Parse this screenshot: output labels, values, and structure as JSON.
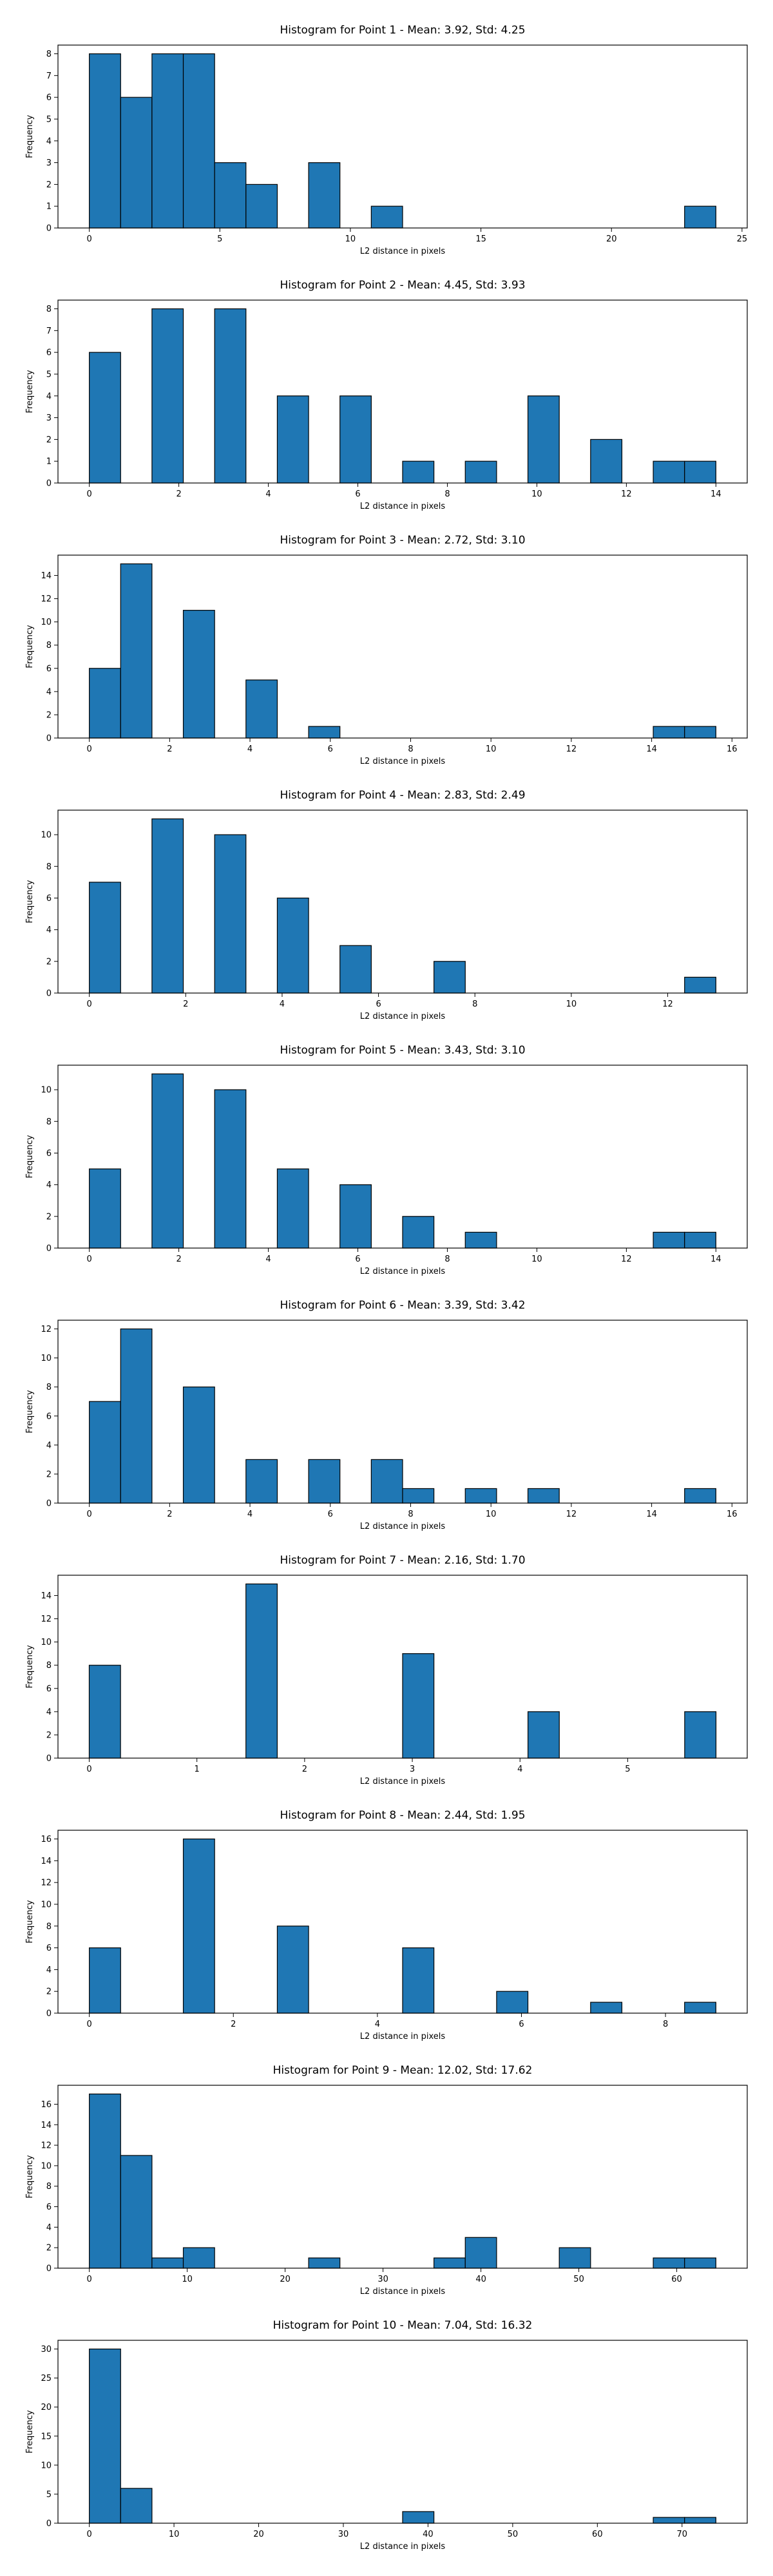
{
  "colors": {
    "bar": "#1f77b4",
    "edge": "#000000",
    "axis": "#000000",
    "background": "#ffffff"
  },
  "chart_data": [
    {
      "type": "bar",
      "title": "Histogram for Point 1 - Mean: 3.92, Std: 4.25",
      "xlabel": "L2 distance in pixels",
      "ylabel": "Frequency",
      "xlim": [
        -1.2,
        25.2
      ],
      "ylim": [
        0,
        8.4
      ],
      "xticks": [
        0,
        5,
        10,
        15,
        20,
        25
      ],
      "yticks": [
        0,
        1,
        2,
        3,
        4,
        5,
        6,
        7,
        8
      ],
      "bin_edges": [
        0.0,
        1.2,
        2.4,
        3.6,
        4.8,
        6.0,
        7.2,
        8.4,
        9.6,
        10.8,
        12.0,
        13.2,
        14.4,
        15.6,
        16.8,
        18.0,
        19.2,
        20.4,
        21.6,
        22.8,
        24.0
      ],
      "counts": [
        8,
        6,
        8,
        8,
        3,
        2,
        0,
        3,
        0,
        1,
        0,
        0,
        0,
        0,
        0,
        0,
        0,
        0,
        0,
        1
      ],
      "grid": false
    },
    {
      "type": "bar",
      "title": "Histogram for Point 2 - Mean: 4.45, Std: 3.93",
      "xlabel": "L2 distance in pixels",
      "ylabel": "Frequency",
      "xlim": [
        -0.7,
        14.7
      ],
      "ylim": [
        0,
        8.4
      ],
      "xticks": [
        0,
        2,
        4,
        6,
        8,
        10,
        12,
        14
      ],
      "yticks": [
        0,
        1,
        2,
        3,
        4,
        5,
        6,
        7,
        8
      ],
      "bin_edges": [
        0.0,
        0.7,
        1.4,
        2.1,
        2.8,
        3.5,
        4.2,
        4.9,
        5.6,
        6.3,
        7.0,
        7.7,
        8.4,
        9.1,
        9.8,
        10.5,
        11.2,
        11.9,
        12.6,
        13.3,
        14.0
      ],
      "counts": [
        6,
        0,
        8,
        0,
        8,
        0,
        4,
        0,
        4,
        0,
        1,
        0,
        1,
        0,
        4,
        0,
        2,
        0,
        1,
        1
      ],
      "grid": false
    },
    {
      "type": "bar",
      "title": "Histogram for Point 3 - Mean: 2.72, Std: 3.10",
      "xlabel": "L2 distance in pixels",
      "ylabel": "Frequency",
      "xlim": [
        -0.78,
        16.38
      ],
      "ylim": [
        0,
        15.75
      ],
      "xticks": [
        0,
        2,
        4,
        6,
        8,
        10,
        12,
        14,
        16
      ],
      "yticks": [
        0,
        2,
        4,
        6,
        8,
        10,
        12,
        14
      ],
      "bin_edges": [
        0.0,
        0.78,
        1.56,
        2.34,
        3.12,
        3.9,
        4.68,
        5.46,
        6.24,
        7.02,
        7.8,
        8.58,
        9.36,
        10.14,
        10.92,
        11.7,
        12.48,
        13.26,
        14.04,
        14.82,
        15.6
      ],
      "counts": [
        6,
        15,
        0,
        11,
        0,
        5,
        0,
        1,
        0,
        0,
        0,
        0,
        0,
        0,
        0,
        0,
        0,
        0,
        1,
        1
      ],
      "grid": false
    },
    {
      "type": "bar",
      "title": "Histogram for Point 4 - Mean: 2.83, Std: 2.49",
      "xlabel": "L2 distance in pixels",
      "ylabel": "Frequency",
      "xlim": [
        -0.65,
        13.65
      ],
      "ylim": [
        0,
        11.55
      ],
      "xticks": [
        0,
        2,
        4,
        6,
        8,
        10,
        12
      ],
      "yticks": [
        0,
        2,
        4,
        6,
        8,
        10
      ],
      "bin_edges": [
        0.0,
        0.65,
        1.3,
        1.95,
        2.6,
        3.25,
        3.9,
        4.55,
        5.2,
        5.85,
        6.5,
        7.15,
        7.8,
        8.45,
        9.1,
        9.75,
        10.4,
        11.05,
        11.7,
        12.35,
        13.0
      ],
      "counts": [
        7,
        0,
        11,
        0,
        10,
        0,
        6,
        0,
        3,
        0,
        0,
        2,
        0,
        0,
        0,
        0,
        0,
        0,
        0,
        1
      ],
      "grid": false
    },
    {
      "type": "bar",
      "title": "Histogram for Point 5 - Mean: 3.43, Std: 3.10",
      "xlabel": "L2 distance in pixels",
      "ylabel": "Frequency",
      "xlim": [
        -0.7,
        14.7
      ],
      "ylim": [
        0,
        11.55
      ],
      "xticks": [
        0,
        2,
        4,
        6,
        8,
        10,
        12,
        14
      ],
      "yticks": [
        0,
        2,
        4,
        6,
        8,
        10
      ],
      "bin_edges": [
        0.0,
        0.7,
        1.4,
        2.1,
        2.8,
        3.5,
        4.2,
        4.9,
        5.6,
        6.3,
        7.0,
        7.7,
        8.4,
        9.1,
        9.8,
        10.5,
        11.2,
        11.9,
        12.6,
        13.3,
        14.0
      ],
      "counts": [
        5,
        0,
        11,
        0,
        10,
        0,
        5,
        0,
        4,
        0,
        2,
        0,
        1,
        0,
        0,
        0,
        0,
        0,
        1,
        1
      ],
      "grid": false
    },
    {
      "type": "bar",
      "title": "Histogram for Point 6 - Mean: 3.39, Std: 3.42",
      "xlabel": "L2 distance in pixels",
      "ylabel": "Frequency",
      "xlim": [
        -0.78,
        16.38
      ],
      "ylim": [
        0,
        12.6
      ],
      "xticks": [
        0,
        2,
        4,
        6,
        8,
        10,
        12,
        14,
        16
      ],
      "yticks": [
        0,
        2,
        4,
        6,
        8,
        10,
        12
      ],
      "bin_edges": [
        0.0,
        0.78,
        1.56,
        2.34,
        3.12,
        3.9,
        4.68,
        5.46,
        6.24,
        7.02,
        7.8,
        8.58,
        9.36,
        10.14,
        10.92,
        11.7,
        12.48,
        13.26,
        14.04,
        14.82,
        15.6
      ],
      "counts": [
        7,
        12,
        0,
        8,
        0,
        3,
        0,
        3,
        0,
        3,
        1,
        0,
        1,
        0,
        1,
        0,
        0,
        0,
        0,
        1
      ],
      "grid": false
    },
    {
      "type": "bar",
      "title": "Histogram for Point 7 - Mean: 2.16, Std: 1.70",
      "xlabel": "L2 distance in pixels",
      "ylabel": "Frequency",
      "xlim": [
        -0.29,
        6.11
      ],
      "ylim": [
        0,
        15.75
      ],
      "xticks": [
        0,
        1,
        2,
        3,
        4,
        5
      ],
      "yticks": [
        0,
        2,
        4,
        6,
        8,
        10,
        12,
        14
      ],
      "bin_edges": [
        0.0,
        0.291,
        0.582,
        0.873,
        1.164,
        1.455,
        1.746,
        2.037,
        2.328,
        2.619,
        2.91,
        3.201,
        3.492,
        3.783,
        4.074,
        4.365,
        4.656,
        4.947,
        5.238,
        5.529,
        5.82
      ],
      "counts": [
        8,
        0,
        0,
        0,
        0,
        15,
        0,
        0,
        0,
        0,
        9,
        0,
        0,
        0,
        4,
        0,
        0,
        0,
        0,
        4
      ],
      "grid": false
    },
    {
      "type": "bar",
      "title": "Histogram for Point 8 - Mean: 2.44, Std: 1.95",
      "xlabel": "L2 distance in pixels",
      "ylabel": "Frequency",
      "xlim": [
        -0.435,
        9.135
      ],
      "ylim": [
        0,
        16.8
      ],
      "xticks": [
        0,
        2,
        4,
        6,
        8
      ],
      "yticks": [
        0,
        2,
        4,
        6,
        8,
        10,
        12,
        14,
        16
      ],
      "bin_edges": [
        0.0,
        0.435,
        0.87,
        1.305,
        1.74,
        2.175,
        2.61,
        3.045,
        3.48,
        3.915,
        4.35,
        4.785,
        5.22,
        5.655,
        6.09,
        6.525,
        6.96,
        7.395,
        7.83,
        8.265,
        8.7
      ],
      "counts": [
        6,
        0,
        0,
        16,
        0,
        0,
        8,
        0,
        0,
        0,
        6,
        0,
        0,
        2,
        0,
        0,
        1,
        0,
        0,
        1
      ],
      "grid": false
    },
    {
      "type": "bar",
      "title": "Histogram for Point 9 - Mean: 12.02, Std: 17.62",
      "xlabel": "L2 distance in pixels",
      "ylabel": "Frequency",
      "xlim": [
        -3.2,
        67.2
      ],
      "ylim": [
        0,
        17.85
      ],
      "xticks": [
        0,
        10,
        20,
        30,
        40,
        50,
        60
      ],
      "yticks": [
        0,
        2,
        4,
        6,
        8,
        10,
        12,
        14,
        16
      ],
      "bin_edges": [
        0.0,
        3.2,
        6.4,
        9.6,
        12.8,
        16.0,
        19.2,
        22.4,
        25.6,
        28.8,
        32.0,
        35.2,
        38.4,
        41.6,
        44.8,
        48.0,
        51.2,
        54.4,
        57.6,
        60.8,
        64.0
      ],
      "counts": [
        17,
        11,
        1,
        2,
        0,
        0,
        0,
        1,
        0,
        0,
        0,
        1,
        3,
        0,
        0,
        2,
        0,
        0,
        1,
        1
      ],
      "grid": false
    },
    {
      "type": "bar",
      "title": "Histogram for Point 10 - Mean: 7.04, Std: 16.32",
      "xlabel": "L2 distance in pixels",
      "ylabel": "Frequency",
      "xlim": [
        -3.7,
        77.7
      ],
      "ylim": [
        0,
        31.5
      ],
      "xticks": [
        0,
        10,
        20,
        30,
        40,
        50,
        60,
        70
      ],
      "yticks": [
        0,
        5,
        10,
        15,
        20,
        25,
        30
      ],
      "bin_edges": [
        0.0,
        3.7,
        7.4,
        11.1,
        14.8,
        18.5,
        22.2,
        25.9,
        29.6,
        33.3,
        37.0,
        40.7,
        44.4,
        48.1,
        51.8,
        55.5,
        59.2,
        62.9,
        66.6,
        70.3,
        74.0
      ],
      "counts": [
        30,
        6,
        0,
        0,
        0,
        0,
        0,
        0,
        0,
        0,
        2,
        0,
        0,
        0,
        0,
        0,
        0,
        0,
        1,
        1
      ],
      "grid": false
    }
  ]
}
